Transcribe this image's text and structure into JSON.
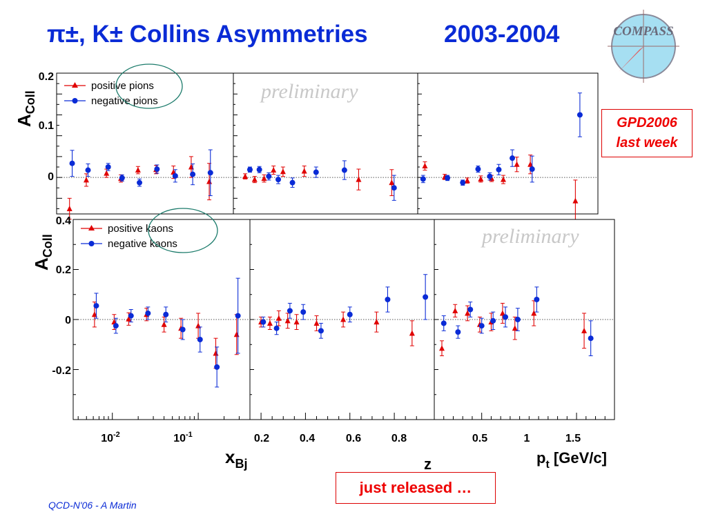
{
  "slide": {
    "title_main": "π±, K± Collins Asymmetries",
    "title_years": "2003-2004",
    "logo_text": "COMPASS",
    "gpd_note_line1": "GPD2006",
    "gpd_note_line2": "last week",
    "released_note": "just released …",
    "footer": "QCD-N'06  -  A Martin",
    "preliminary": "preliminary"
  },
  "colors": {
    "title": "#0a2bd6",
    "positive": "#e00000",
    "negative": "#0a2bd6",
    "note": "#e00000",
    "circle": "#1a7a6a"
  },
  "chart_data": [
    {
      "type": "scatter",
      "panel": "pions",
      "ylabel": "A",
      "ylabel_sub": "Coll",
      "ylim": [
        -0.07,
        0.2
      ],
      "yticks": [
        "0.2",
        "0.1",
        "0"
      ],
      "legend": [
        "positive pions",
        "negative pions"
      ],
      "legend_placement": "top-left",
      "subplots": [
        {
          "variable": "x_Bj",
          "scale": "log",
          "series": [
            {
              "name": "positive pions",
              "x": [
                0.0042,
                0.0065,
                0.011,
                0.016,
                0.025,
                0.04,
                0.063,
                0.1,
                0.16
              ],
              "y": [
                -0.06,
                -0.005,
                0.008,
                -0.002,
                0.014,
                0.015,
                0.01,
                0.02,
                -0.008
              ],
              "err": [
                0.02,
                0.012,
                0.008,
                0.007,
                0.007,
                0.008,
                0.012,
                0.02,
                0.035
              ]
            },
            {
              "name": "negative pions",
              "x": [
                0.0045,
                0.0068,
                0.0115,
                0.0165,
                0.026,
                0.041,
                0.066,
                0.104,
                0.165
              ],
              "y": [
                0.027,
                0.014,
                0.02,
                -0.001,
                -0.01,
                0.016,
                0.003,
                0.006,
                0.009
              ],
              "err": [
                0.025,
                0.012,
                0.007,
                0.006,
                0.007,
                0.008,
                0.012,
                0.02,
                0.044
              ]
            }
          ]
        },
        {
          "variable": "z",
          "scale": "linear",
          "series": [
            {
              "name": "positive pions",
              "x": [
                0.22,
                0.26,
                0.3,
                0.34,
                0.38,
                0.47,
                0.7,
                0.84
              ],
              "y": [
                0.002,
                -0.004,
                -0.002,
                0.014,
                0.011,
                0.012,
                -0.004,
                -0.01
              ],
              "err": [
                0.005,
                0.006,
                0.007,
                0.008,
                0.009,
                0.01,
                0.02,
                0.025
              ]
            },
            {
              "name": "negative pions",
              "x": [
                0.24,
                0.28,
                0.32,
                0.36,
                0.42,
                0.52,
                0.64,
                0.85
              ],
              "y": [
                0.015,
                0.015,
                0.002,
                -0.004,
                -0.01,
                0.01,
                0.014,
                -0.02
              ],
              "err": [
                0.005,
                0.006,
                0.007,
                0.008,
                0.009,
                0.01,
                0.018,
                0.024
              ]
            }
          ]
        },
        {
          "variable": "p_t",
          "scale": "linear",
          "series": [
            {
              "name": "positive pions",
              "x": [
                0.08,
                0.3,
                0.55,
                0.7,
                0.82,
                0.95,
                1.1,
                1.25,
                1.75
              ],
              "y": [
                0.022,
                0.001,
                -0.006,
                -0.003,
                -0.002,
                -0.004,
                0.025,
                0.025,
                -0.045
              ],
              "err": [
                0.008,
                0.005,
                0.005,
                0.006,
                0.006,
                0.008,
                0.014,
                0.018,
                0.04
              ]
            },
            {
              "name": "negative pions",
              "x": [
                0.06,
                0.33,
                0.5,
                0.67,
                0.8,
                0.9,
                1.05,
                1.27,
                1.8
              ],
              "y": [
                -0.003,
                -0.001,
                -0.01,
                0.016,
                0.002,
                0.015,
                0.037,
                0.016,
                0.12
              ],
              "err": [
                0.007,
                0.005,
                0.005,
                0.006,
                0.007,
                0.01,
                0.016,
                0.025,
                0.042
              ]
            }
          ]
        }
      ]
    },
    {
      "type": "scatter",
      "panel": "kaons",
      "ylabel": "A",
      "ylabel_sub": "Coll",
      "ylim": [
        -0.4,
        0.4
      ],
      "yticks": [
        "0.4",
        "0.2",
        "0",
        "-0.2"
      ],
      "legend": [
        "positive kaons",
        "negative kaons"
      ],
      "legend_placement": "top-left",
      "subplots": [
        {
          "variable": "x_Bj",
          "scale": "log",
          "xlabel": "x",
          "xlabel_sub": "Bj",
          "xticks": [
            "10-2",
            "10-1"
          ],
          "series": [
            {
              "name": "positive kaons",
              "x": [
                0.0062,
                0.0105,
                0.0155,
                0.025,
                0.04,
                0.063,
                0.1,
                0.16,
                0.28
              ],
              "y": [
                0.02,
                -0.01,
                0.002,
                0.02,
                -0.02,
                -0.035,
                -0.025,
                -0.135,
                -0.06
              ],
              "err": [
                0.05,
                0.03,
                0.025,
                0.025,
                0.03,
                0.04,
                0.05,
                0.06,
                0.08
              ]
            },
            {
              "name": "negative kaons",
              "x": [
                0.0065,
                0.011,
                0.0165,
                0.026,
                0.042,
                0.066,
                0.105,
                0.165,
                0.29
              ],
              "y": [
                0.055,
                -0.025,
                0.015,
                0.025,
                0.02,
                -0.04,
                -0.08,
                -0.19,
                0.015
              ],
              "err": [
                0.05,
                0.03,
                0.025,
                0.025,
                0.03,
                0.04,
                0.05,
                0.08,
                0.15
              ]
            }
          ]
        },
        {
          "variable": "z",
          "scale": "linear",
          "xlabel": "z",
          "xticks": [
            "0.2",
            "0.4",
            "0.6",
            "0.8"
          ],
          "series": [
            {
              "name": "positive kaons",
              "x": [
                0.2,
                0.24,
                0.28,
                0.32,
                0.36,
                0.45,
                0.57,
                0.72,
                0.88
              ],
              "y": [
                -0.01,
                -0.015,
                0.005,
                -0.005,
                -0.01,
                -0.015,
                0.0,
                -0.01,
                -0.055
              ],
              "err": [
                0.02,
                0.025,
                0.03,
                0.03,
                0.03,
                0.03,
                0.03,
                0.04,
                0.05
              ]
            },
            {
              "name": "negative kaons",
              "x": [
                0.21,
                0.27,
                0.33,
                0.39,
                0.47,
                0.6,
                0.77,
                0.94
              ],
              "y": [
                -0.01,
                -0.035,
                0.035,
                0.03,
                -0.045,
                0.02,
                0.08,
                0.09
              ],
              "err": [
                0.02,
                0.025,
                0.03,
                0.03,
                0.03,
                0.03,
                0.05,
                0.09
              ]
            }
          ]
        },
        {
          "variable": "p_t",
          "scale": "linear",
          "xlabel": "p",
          "xlabel_sub": "t",
          "xlabel_suffix": " [GeV/c]",
          "xticks": [
            "0.5",
            "1",
            "1.5"
          ],
          "series": [
            {
              "name": "positive kaons",
              "x": [
                0.08,
                0.22,
                0.35,
                0.48,
                0.6,
                0.72,
                0.85,
                1.05,
                1.58
              ],
              "y": [
                -0.115,
                0.035,
                0.025,
                -0.02,
                -0.01,
                0.025,
                -0.035,
                0.025,
                -0.045
              ],
              "err": [
                0.03,
                0.025,
                0.03,
                0.03,
                0.035,
                0.04,
                0.045,
                0.05,
                0.07
              ]
            },
            {
              "name": "negative kaons",
              "x": [
                0.1,
                0.25,
                0.38,
                0.5,
                0.62,
                0.75,
                0.88,
                1.08,
                1.65
              ],
              "y": [
                -0.015,
                -0.05,
                0.04,
                -0.025,
                -0.005,
                0.01,
                0.0,
                0.08,
                -0.075
              ],
              "err": [
                0.03,
                0.025,
                0.03,
                0.03,
                0.035,
                0.04,
                0.045,
                0.05,
                0.07
              ]
            }
          ]
        }
      ]
    }
  ]
}
